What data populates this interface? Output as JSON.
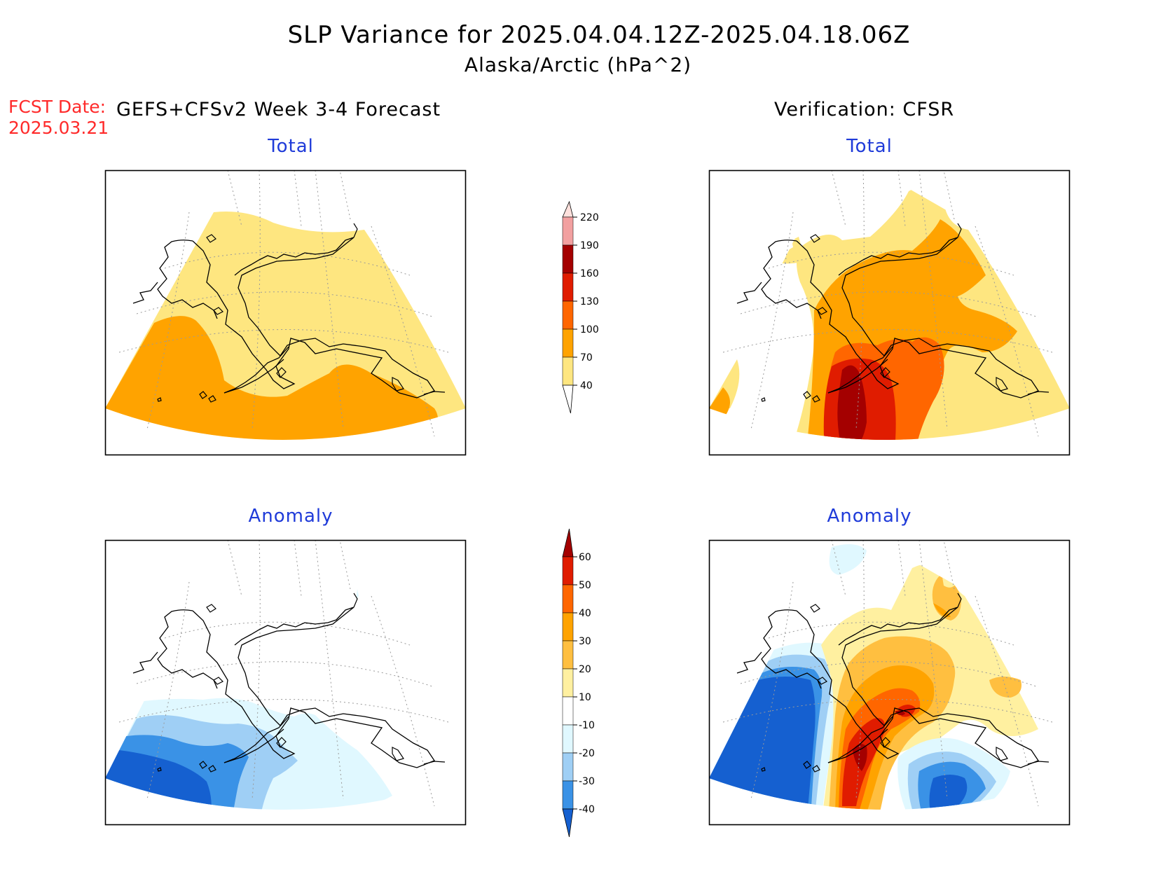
{
  "header": {
    "title": "SLP Variance for 2025.04.04.12Z-2025.04.18.06Z",
    "subtitle": "Alaska/Arctic (hPa^2)",
    "fcst_label": "FCST Date:",
    "fcst_date": "2025.03.21",
    "forecast_header": "GEFS+CFSv2 Week 3-4 Forecast",
    "verification_header": "Verification: CFSR"
  },
  "panels": {
    "forecast_total_title": "Total",
    "verification_total_title": "Total",
    "forecast_anomaly_title": "Anomaly",
    "verification_anomaly_title": "Anomaly"
  },
  "colorbar_total": {
    "labels": [
      "220",
      "190",
      "160",
      "130",
      "100",
      "70",
      "40"
    ],
    "colors": [
      "#fde0dc",
      "#f2a0a0",
      "#a40000",
      "#e01c00",
      "#ff6600",
      "#ffa300",
      "#fee680"
    ]
  },
  "colorbar_anomaly": {
    "labels": [
      "60",
      "50",
      "40",
      "30",
      "20",
      "10",
      "-10",
      "-20",
      "-30",
      "-40"
    ],
    "colors": [
      "#a40000",
      "#e01c00",
      "#ff6600",
      "#ffa300",
      "#ffbf40",
      "#fff0a0",
      "#ffffff",
      "#e0f8ff",
      "#9fcff5",
      "#3a92e6",
      "#1560d0"
    ]
  },
  "colors": {
    "title_text": "#000000",
    "fcst_text": "#ff2a2a",
    "panel_title": "#1f3bd9"
  }
}
